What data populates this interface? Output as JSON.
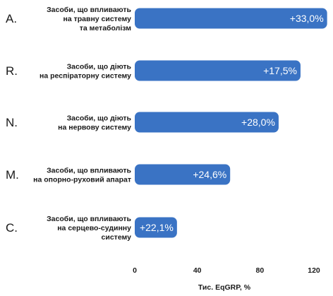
{
  "chart_data": {
    "type": "bar",
    "orientation": "horizontal",
    "categories": [
      {
        "code": "A.",
        "lines": [
          "Засоби, що впливають",
          "на травну систему",
          "та метаболізм"
        ]
      },
      {
        "code": "R.",
        "lines": [
          "Засоби, що діють",
          "на респіраторну систему"
        ]
      },
      {
        "code": "N.",
        "lines": [
          "Засоби, що діють",
          "на нервову систему"
        ]
      },
      {
        "code": "M.",
        "lines": [
          "Засоби, що впливають",
          "на опорно-руховий апарат"
        ]
      },
      {
        "code": "C.",
        "lines": [
          "Засоби, що впливають",
          "на серцево-судинну",
          "систему"
        ]
      }
    ],
    "values": [
      123,
      106,
      92,
      61,
      27
    ],
    "data_labels": [
      "+33,0%",
      "+17,5%",
      "+28,0%",
      "+24,6%",
      "+22,1%"
    ],
    "xlabel": "Тис. EqGRP, %",
    "xlim": [
      0,
      120
    ],
    "xticks": [
      "0",
      "40",
      "80",
      "120"
    ],
    "bar_color": "#3a73c4",
    "grid": false
  }
}
